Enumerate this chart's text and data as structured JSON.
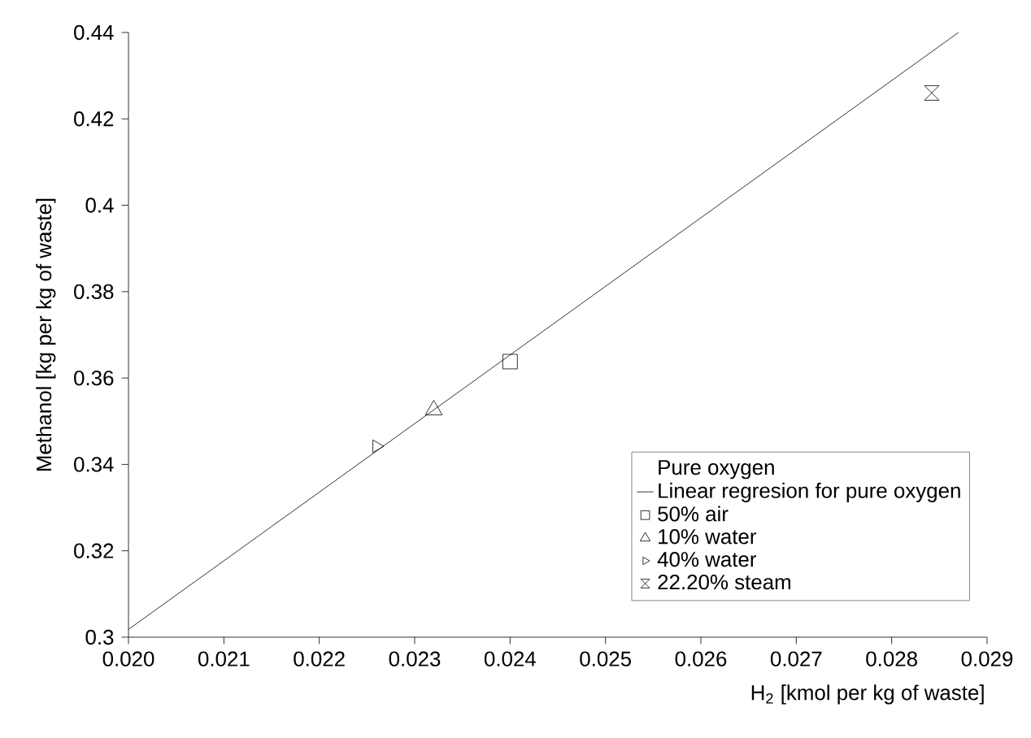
{
  "chart_data": {
    "type": "scatter",
    "xlabel": "H$_{2}$ [kmol per kg of waste]",
    "ylabel": "Methanol [kg per kg of waste]",
    "legend_title": "Pure oxygen",
    "series": [
      {
        "name": "Linear regresion for pure oxygen",
        "type": "line",
        "color": "#000000",
        "marker": "none",
        "x": [
          0.02,
          0.0287
        ],
        "values": [
          0.3018,
          0.44
        ]
      },
      {
        "name": "50% air",
        "color": "#000000",
        "marker": "square",
        "x": [
          0.024
        ],
        "values": [
          0.3638
        ]
      },
      {
        "name": "10% water",
        "color": "#000000",
        "marker": "triangle",
        "x": [
          0.0232
        ],
        "values": [
          0.3526
        ]
      },
      {
        "name": "40% water",
        "color": "#000000",
        "marker": "triangle-right",
        "x": [
          0.0226
        ],
        "values": [
          0.3442
        ]
      },
      {
        "name": "22.20% steam",
        "color": "#000000",
        "x": [
          0.02842
        ],
        "values": [
          0.426
        ]
      }
    ],
    "xlim": [
      0.02,
      0.029
    ],
    "ylim": [
      0.3,
      0.44
    ],
    "xticks": [
      {
        "value": 0.02,
        "label": "0.020"
      },
      {
        "value": 0.021,
        "label": "0.021"
      },
      {
        "value": 0.022,
        "label": "0.022"
      },
      {
        "value": 0.023,
        "label": "0.023"
      },
      {
        "value": 0.024,
        "label": "0.024"
      },
      {
        "value": 0.025,
        "label": "0.025"
      },
      {
        "value": 0.026,
        "label": "0.026"
      },
      {
        "value": 0.027,
        "label": "0.027"
      },
      {
        "value": 0.028,
        "label": "0.028"
      },
      {
        "value": 0.029,
        "label": "0.029"
      }
    ],
    "yticks": [
      0.3,
      0.32,
      0.34,
      0.36,
      0.38,
      0.4,
      0.42,
      0.44
    ],
    "grid": false,
    "legend": "bottom right"
  }
}
